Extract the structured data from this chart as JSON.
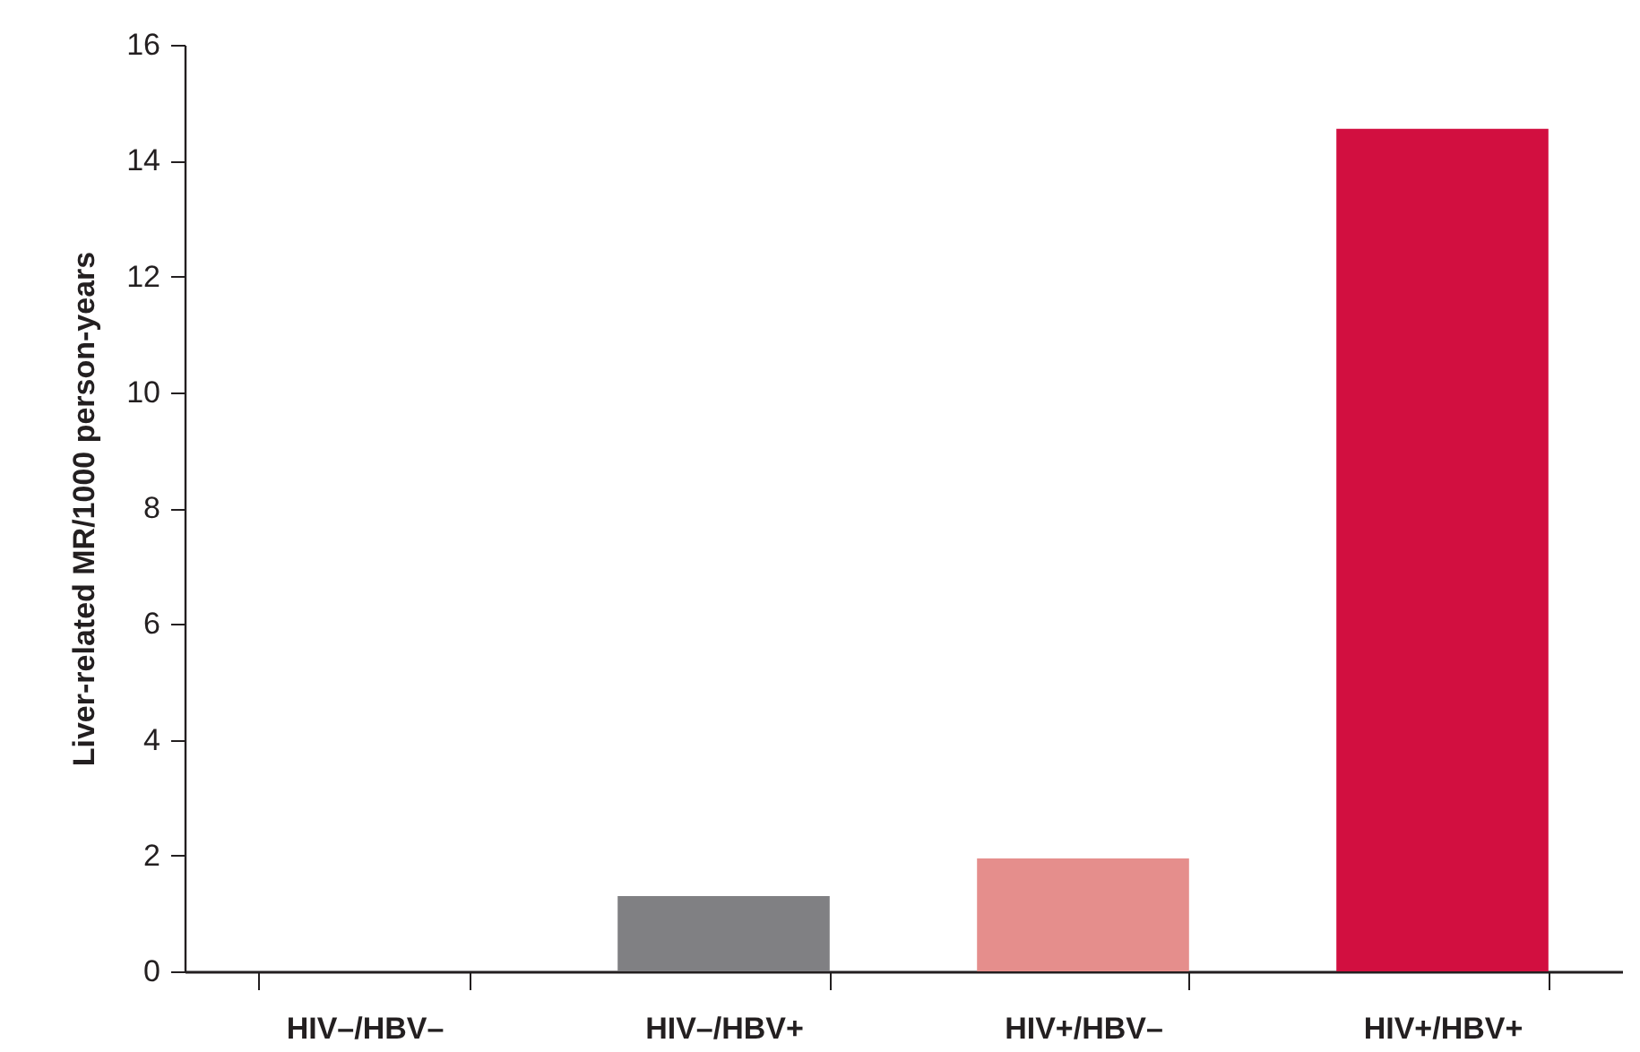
{
  "chart_data": {
    "type": "bar",
    "ylabel": "Liver-related MR/1000 person-years",
    "categories": [
      "HIV–/HBV–",
      "HIV–/HBV+",
      "HIV+/HBV–",
      "HIV+/HBV+"
    ],
    "values": [
      0,
      1.3,
      1.95,
      14.55
    ],
    "colors": [
      "#808083",
      "#808083",
      "#e58e8c",
      "#d20f40"
    ],
    "ylim": [
      0,
      16
    ],
    "yticks": [
      0,
      2,
      4,
      6,
      8,
      10,
      12,
      14,
      16
    ],
    "grid": false,
    "legend": false
  }
}
